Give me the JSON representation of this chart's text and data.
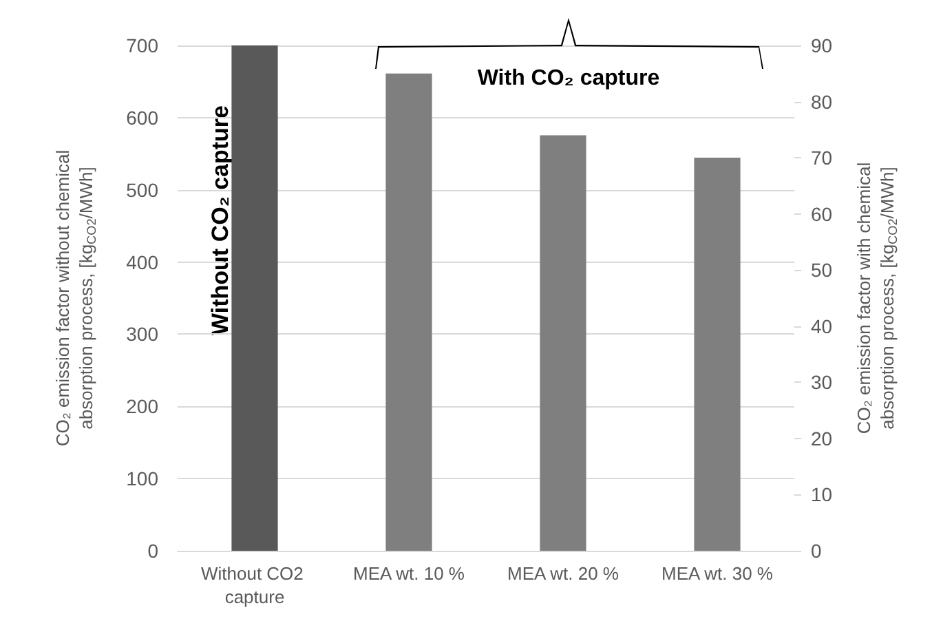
{
  "chart_data": {
    "type": "bar",
    "categories": [
      "Without CO2 capture",
      "MEA wt. 10 %",
      "MEA wt. 20 %",
      "MEA wt. 30 %"
    ],
    "series": [
      {
        "color": "#595959",
        "values": [
          700,
          null,
          null,
          null
        ]
      },
      {
        "color": "#7f7f7f",
        "values": [
          null,
          85,
          74,
          70
        ],
        "axis": "y2"
      }
    ],
    "ylabel": "CO₂ emission factor without chemical absorption process, [kg$_{CO2}$/MWh]",
    "y2label": "CO₂ emission factor with chemical absorption process, [kg$_{CO2}$/MWh]",
    "ylim": [
      0,
      700
    ],
    "yticks": [
      0,
      100,
      200,
      300,
      400,
      500,
      600,
      700
    ],
    "y2lim": [
      0,
      90
    ],
    "y2ticks": [
      0,
      10,
      20,
      30,
      40,
      50,
      60,
      70,
      80,
      90
    ],
    "annotations": [
      "Without CO₂ capture",
      "With CO₂ capture"
    ],
    "grid": "y"
  }
}
